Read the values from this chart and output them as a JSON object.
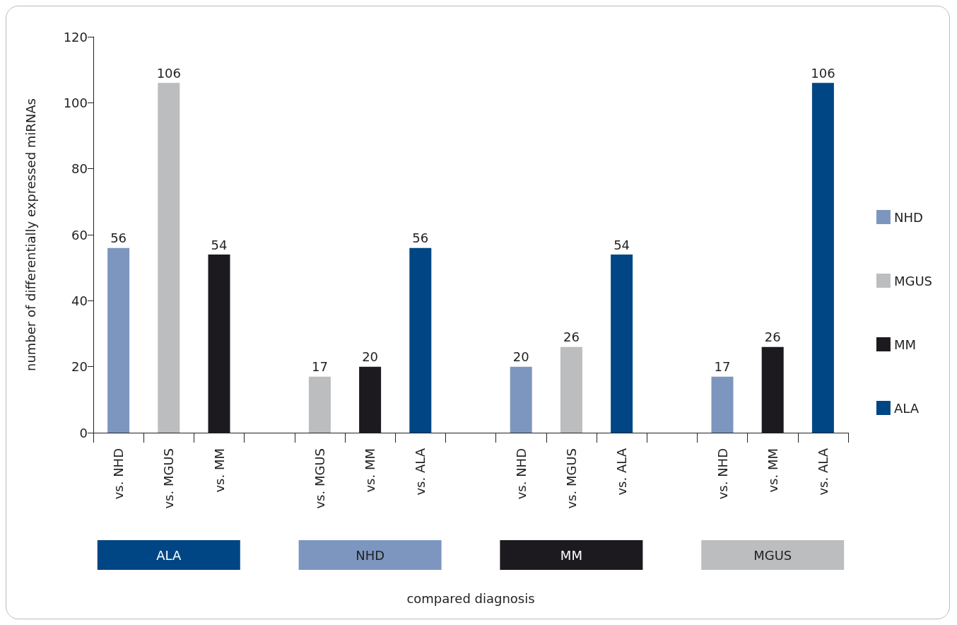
{
  "chart_data": {
    "type": "bar",
    "categories": [
      "vs. NHD",
      "vs. MGUS",
      "vs. MM",
      null,
      "vs. MGUS",
      "vs. MM",
      "vs. ALA",
      null,
      "vs. NHD",
      "vs. MGUS",
      "vs. ALA",
      null,
      "vs. NHD",
      "vs. MM",
      "vs. ALA"
    ],
    "series": [
      {
        "name": "NHD",
        "color": "#7d96bf",
        "values": [
          56,
          null,
          null,
          null,
          null,
          null,
          null,
          null,
          20,
          null,
          null,
          null,
          17,
          null,
          null
        ]
      },
      {
        "name": "MGUS",
        "color": "#bcbdbf",
        "values": [
          null,
          106,
          null,
          null,
          17,
          null,
          null,
          null,
          null,
          26,
          null,
          null,
          null,
          null,
          null
        ]
      },
      {
        "name": "MM",
        "color": "#1c1a1f",
        "values": [
          null,
          null,
          54,
          null,
          null,
          20,
          null,
          null,
          null,
          null,
          null,
          null,
          null,
          26,
          null
        ]
      },
      {
        "name": "ALA",
        "color": "#004684",
        "values": [
          null,
          null,
          null,
          null,
          null,
          null,
          56,
          null,
          null,
          null,
          54,
          null,
          null,
          null,
          106
        ]
      }
    ],
    "ylabel": "number of differentially expressed miRNAs",
    "ylim": [
      0,
      120
    ],
    "yticks": [
      0,
      20,
      40,
      60,
      80,
      100,
      120
    ],
    "annotations": [
      "ALA",
      "NHD",
      "MM",
      "MGUS",
      "compared diagnosis"
    ],
    "data_labels": true,
    "grid": false,
    "legend": "right"
  }
}
